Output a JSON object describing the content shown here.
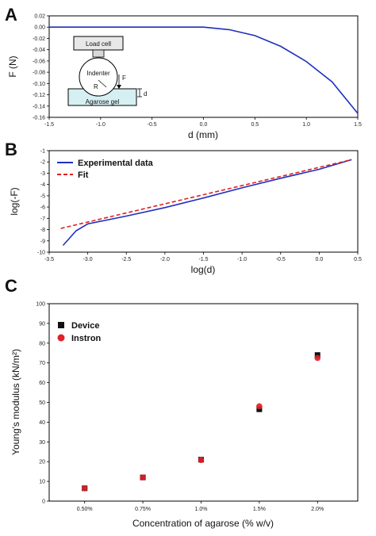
{
  "chart_data": [
    {
      "panel_label": "A",
      "type": "line",
      "xlabel": "d (mm)",
      "ylabel": "F (N)",
      "xlim": [
        -1.5,
        1.5
      ],
      "ylim": [
        -0.16,
        0.02
      ],
      "xticks": [
        "-1.5",
        "-1.0",
        "-0.5",
        "0.0",
        "0.5",
        "1.0",
        "1.5"
      ],
      "yticks": [
        "0.02",
        "0.00",
        "-0.02",
        "-0.04",
        "-0.06",
        "-0.08",
        "-0.10",
        "-0.12",
        "-0.14",
        "-0.16"
      ],
      "series": [
        {
          "color": "#1f2fbf",
          "x": [
            -1.5,
            0.0,
            0.25,
            0.5,
            0.75,
            1.0,
            1.25,
            1.5
          ],
          "y": [
            0.0,
            0.0,
            -0.0045,
            -0.015,
            -0.034,
            -0.061,
            -0.097,
            -0.153
          ]
        }
      ],
      "inset_labels": {
        "load_cell": "Load cell",
        "indenter": "Indenter",
        "radius": "R",
        "force": "F",
        "depth": "d",
        "gel": "Agarose gel"
      }
    },
    {
      "panel_label": "B",
      "type": "line",
      "xlabel": "log(d)",
      "ylabel": "log(-F)",
      "xlim": [
        -3.5,
        0.5
      ],
      "ylim": [
        -10,
        -1
      ],
      "xticks": [
        "-3.5",
        "-3.0",
        "-2.5",
        "-2.0",
        "-1.5",
        "-1.0",
        "-0.5",
        "0.0",
        "0.5"
      ],
      "yticks": [
        "-1",
        "-2",
        "-3",
        "-4",
        "-5",
        "-6",
        "-7",
        "-8",
        "-9",
        "-10"
      ],
      "legend_position": "top-left",
      "series": [
        {
          "name": "Experimental data",
          "color": "#1f2fbf",
          "style": "solid",
          "x": [
            -3.32,
            -3.15,
            -3.0,
            -2.5,
            -2.0,
            -1.5,
            -1.0,
            -0.5,
            0.0,
            0.42
          ],
          "y": [
            -9.4,
            -8.1,
            -7.5,
            -6.8,
            -6.05,
            -5.2,
            -4.3,
            -3.45,
            -2.65,
            -1.8
          ]
        },
        {
          "name": "Fit",
          "color": "#e02020",
          "style": "dashed",
          "x": [
            -3.35,
            0.42
          ],
          "y": [
            -7.9,
            -1.8
          ]
        }
      ]
    },
    {
      "panel_label": "C",
      "type": "scatter",
      "xlabel": "Concentration of agarose  (% w/v)",
      "ylabel": "Young's modulus  (kN/m²)",
      "ylim": [
        0,
        100
      ],
      "categories": [
        "0.50%",
        "0.75%",
        "1.0%",
        "1.5%",
        "2.0%"
      ],
      "yticks": [
        "0",
        "10",
        "20",
        "30",
        "40",
        "50",
        "60",
        "70",
        "80",
        "90",
        "100"
      ],
      "legend_position": "top-left",
      "series": [
        {
          "name": "Device",
          "color": "#111111",
          "marker": "square",
          "values": [
            6.5,
            12.0,
            21.0,
            46.5,
            74.0
          ]
        },
        {
          "name": "Instron",
          "color": "#e0202a",
          "marker": "circle",
          "values": [
            6.5,
            12.0,
            20.8,
            48.0,
            72.5
          ]
        }
      ]
    }
  ]
}
